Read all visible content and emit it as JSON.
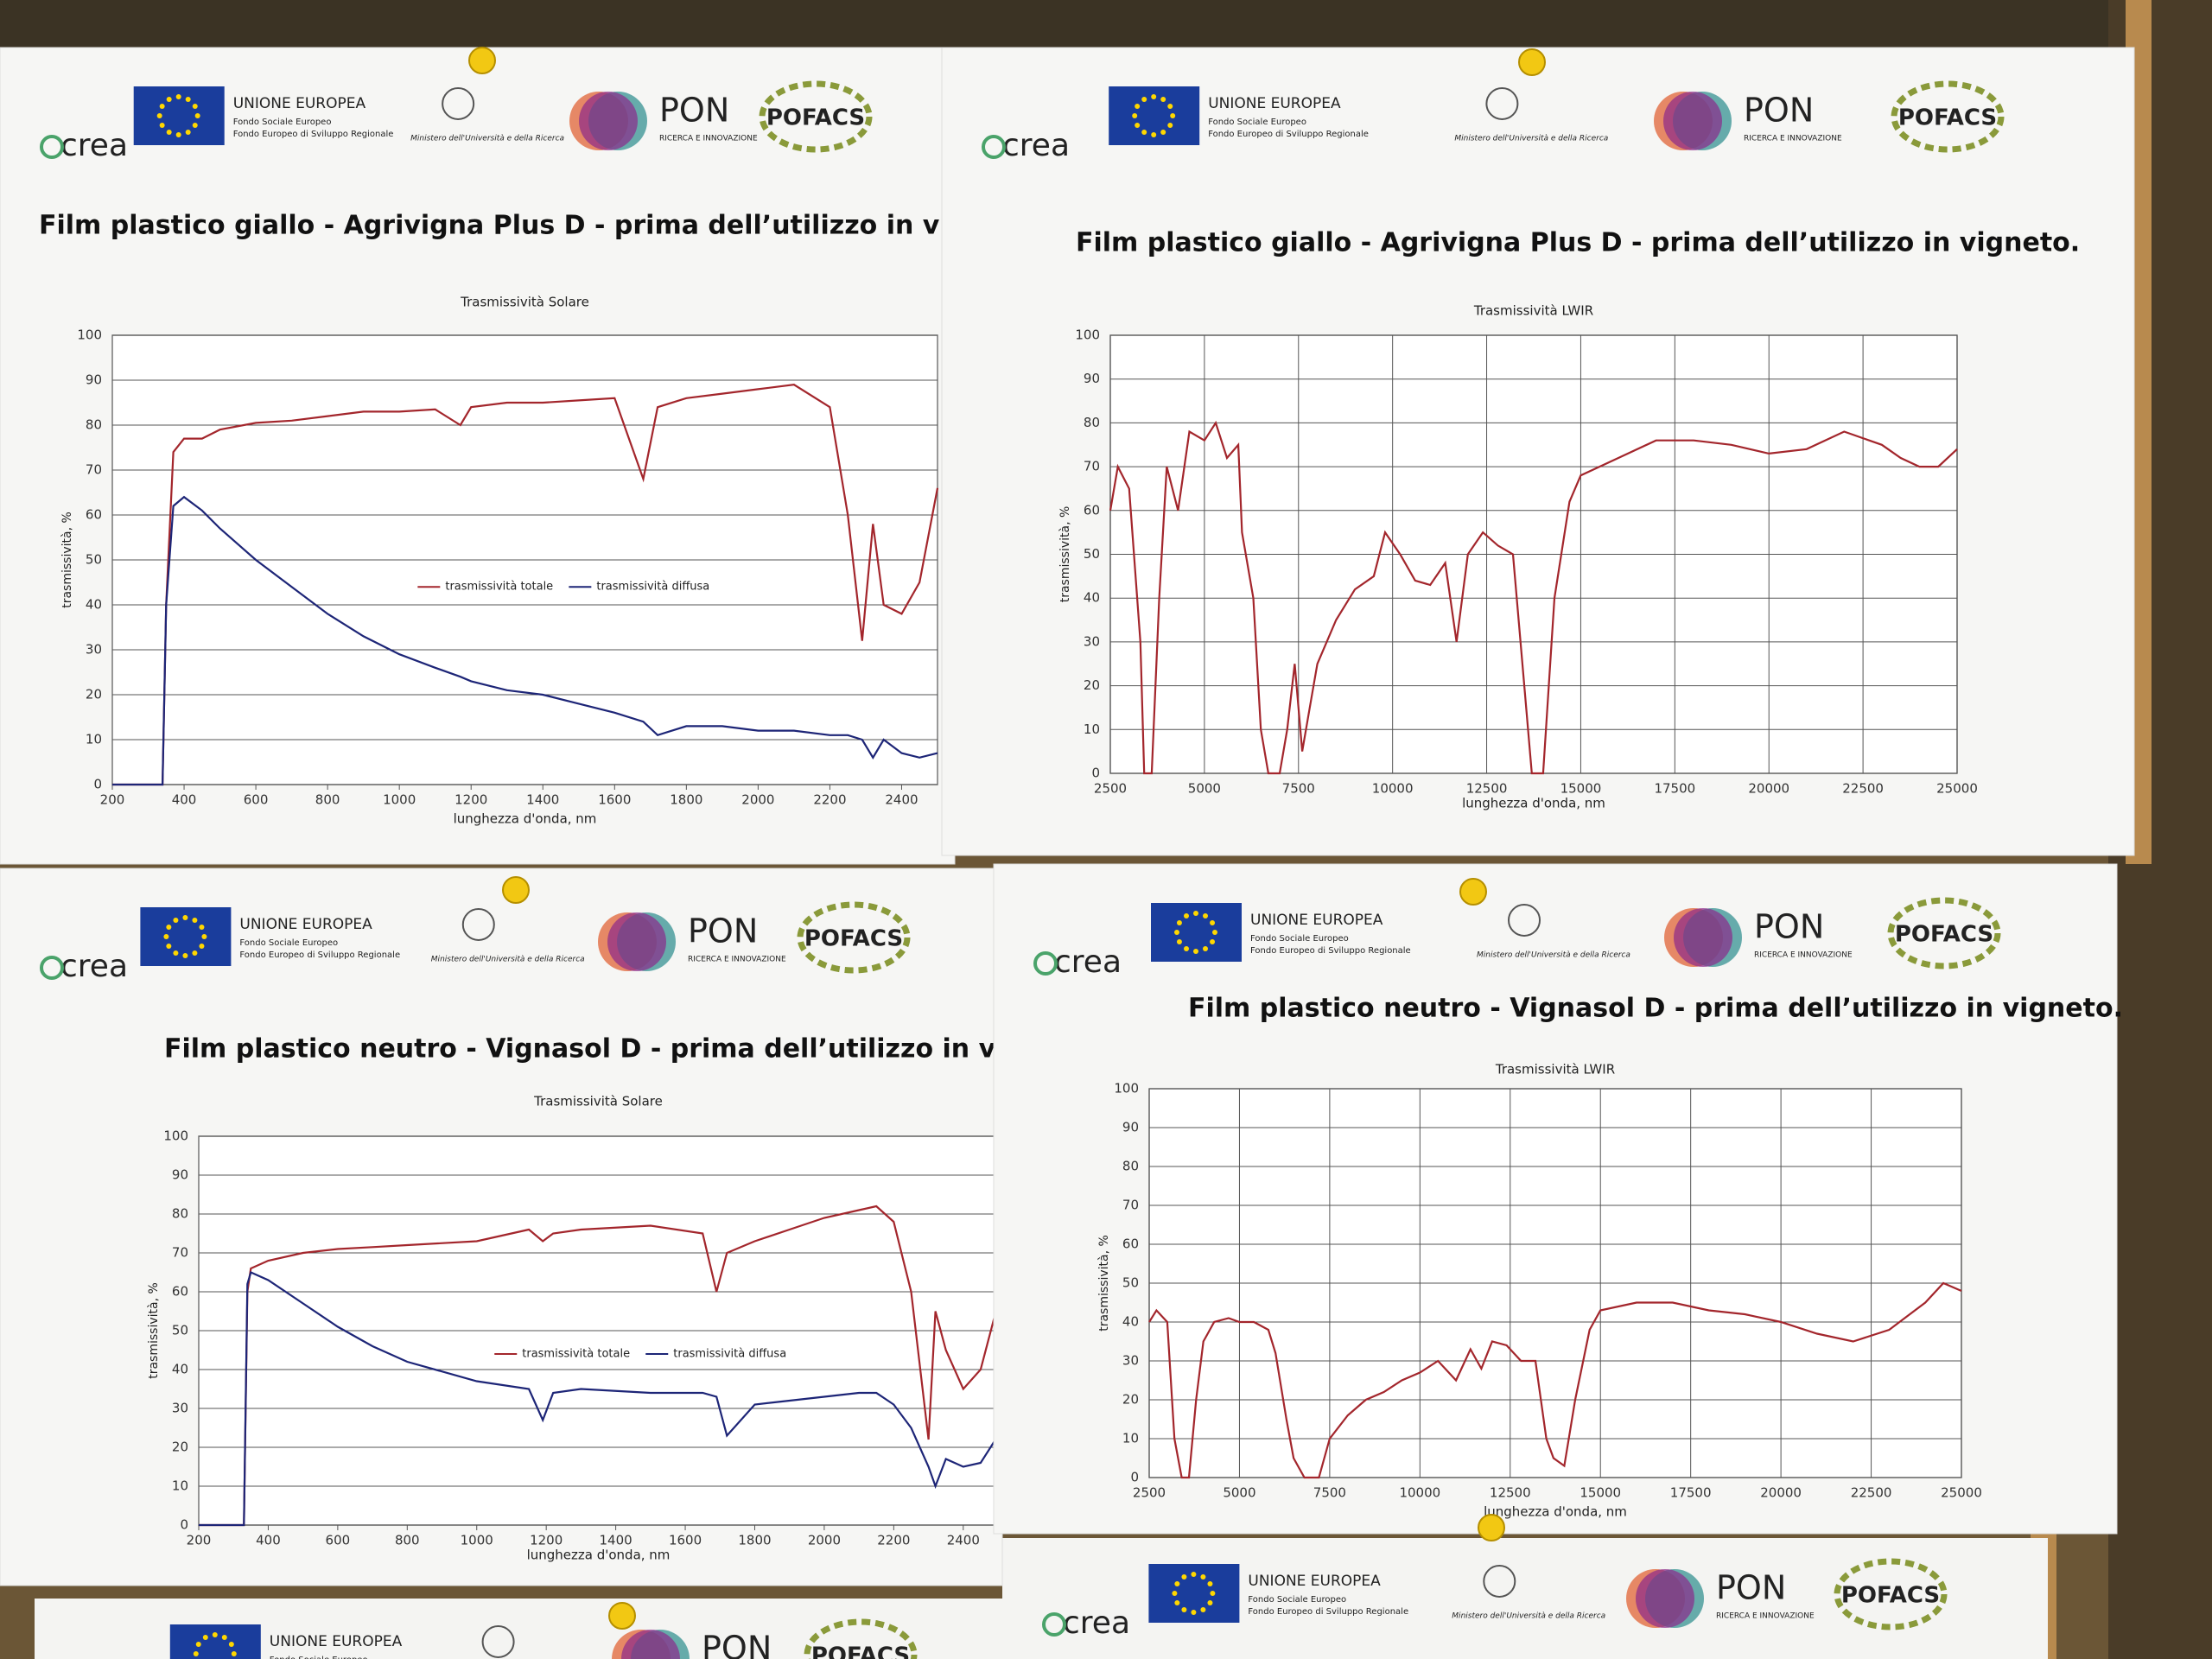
{
  "header": {
    "eu": "UNIONE EUROPEA",
    "fund1": "Fondo Sociale Europeo",
    "fund2": "Fondo Europeo di Sviluppo Regionale",
    "ministry": "Ministero dell'Università e della Ricerca",
    "crea": "crea",
    "pon": "PON",
    "pon_sub": "RICERCA E INNOVAZIONE",
    "pofacs": "POFACS"
  },
  "chart_data": [
    {
      "type": "line",
      "title": "Film plastico giallo - Agrivigna Plus D - prima dell’utilizzo in vigneto",
      "subtitle": "Trasmissività Solare",
      "x_label": "lunghezza  d'onda, nm",
      "y_label": "trasmissività, %",
      "grid": "y",
      "legend": "center",
      "x": [
        200,
        340,
        350,
        370,
        400,
        450,
        500,
        600,
        700,
        800,
        900,
        1000,
        1100,
        1170,
        1200,
        1300,
        1400,
        1500,
        1600,
        1680,
        1720,
        1800,
        1900,
        2000,
        2100,
        2200,
        2250,
        2290,
        2320,
        2350,
        2400,
        2450,
        2500
      ],
      "series": [
        {
          "name": "trasmissività totale",
          "color": "#a3262c",
          "values": [
            0,
            0,
            40,
            74,
            77,
            77,
            79,
            80.5,
            81,
            82,
            83,
            83,
            83.5,
            80,
            84,
            85,
            85,
            85.5,
            86,
            68,
            84,
            86,
            87,
            88,
            89,
            84,
            60,
            32,
            58,
            40,
            38,
            45,
            66
          ]
        },
        {
          "name": "trasmissività diffusa",
          "color": "#1d2577",
          "values": [
            0,
            0,
            40,
            62,
            64,
            61,
            57,
            50,
            44,
            38,
            33,
            29,
            26,
            24,
            23,
            21,
            20,
            18,
            16,
            14,
            11,
            13,
            13,
            12,
            12,
            11,
            11,
            10,
            6,
            10,
            7,
            6,
            7
          ]
        }
      ],
      "xlim": [
        200,
        2500
      ],
      "xticks": [
        200,
        400,
        600,
        800,
        1000,
        1200,
        1400,
        1600,
        1800,
        2000,
        2200,
        2400
      ],
      "ylim": [
        0,
        100
      ],
      "yticks": [
        0,
        10,
        20,
        30,
        40,
        50,
        60,
        70,
        80,
        90,
        100
      ]
    },
    {
      "type": "line",
      "title": "Film plastico giallo - Agrivigna Plus D - prima dell’utilizzo in vigneto.",
      "subtitle": "Trasmissività LWIR",
      "x_label": "lunghezza  d'onda, nm",
      "y_label": "trasmissività, %",
      "grid": "both",
      "x": [
        2500,
        2700,
        3000,
        3300,
        3400,
        3600,
        3800,
        4000,
        4300,
        4600,
        5000,
        5300,
        5600,
        5900,
        6000,
        6300,
        6500,
        6700,
        7000,
        7200,
        7400,
        7600,
        7800,
        8000,
        8500,
        9000,
        9500,
        9800,
        10200,
        10600,
        11000,
        11400,
        11700,
        12000,
        12400,
        12800,
        13200,
        13500,
        13700,
        14000,
        14300,
        14700,
        15000,
        16000,
        17000,
        18000,
        19000,
        20000,
        21000,
        22000,
        23000,
        23500,
        24000,
        24500,
        25000
      ],
      "series": [
        {
          "color": "#a3262c",
          "values": [
            60,
            70,
            65,
            30,
            0,
            0,
            40,
            70,
            60,
            78,
            76,
            80,
            72,
            75,
            55,
            40,
            10,
            0,
            0,
            10,
            25,
            5,
            15,
            25,
            35,
            42,
            45,
            55,
            50,
            44,
            43,
            48,
            30,
            50,
            55,
            52,
            50,
            20,
            0,
            0,
            40,
            62,
            68,
            72,
            76,
            76,
            75,
            73,
            74,
            78,
            75,
            72,
            70,
            70,
            74
          ]
        }
      ],
      "xlim": [
        2500,
        25000
      ],
      "xticks": [
        2500,
        5000,
        7500,
        10000,
        12500,
        15000,
        17500,
        20000,
        22500,
        25000
      ],
      "ylim": [
        0,
        100
      ],
      "yticks": [
        0,
        10,
        20,
        30,
        40,
        50,
        60,
        70,
        80,
        90,
        100
      ]
    },
    {
      "type": "line",
      "title": "Film plastico neutro - Vignasol D - prima dell’utilizzo in vigneto.",
      "subtitle": "Trasmissività Solare",
      "x_label": "lunghezza  d'onda, nm",
      "y_label": "trasmissività, %",
      "grid": "y",
      "legend": "center",
      "x": [
        200,
        330,
        340,
        350,
        400,
        500,
        600,
        700,
        800,
        1000,
        1150,
        1190,
        1220,
        1300,
        1500,
        1650,
        1690,
        1720,
        1800,
        1900,
        2000,
        2100,
        2150,
        2200,
        2250,
        2300,
        2320,
        2350,
        2400,
        2450,
        2500
      ],
      "series": [
        {
          "name": "trasmissività totale",
          "color": "#a3262c",
          "values": [
            0,
            0,
            60,
            66,
            68,
            70,
            71,
            71.5,
            72,
            73,
            76,
            73,
            75,
            76,
            77,
            75,
            60,
            70,
            73,
            76,
            79,
            81,
            82,
            78,
            60,
            22,
            55,
            45,
            35,
            40,
            57
          ]
        },
        {
          "name": "trasmissività diffusa",
          "color": "#1d2577",
          "values": [
            0,
            0,
            62,
            65,
            63,
            57,
            51,
            46,
            42,
            37,
            35,
            27,
            34,
            35,
            34,
            34,
            33,
            23,
            31,
            32,
            33,
            34,
            34,
            31,
            25,
            15,
            10,
            17,
            15,
            16,
            23
          ]
        }
      ],
      "xlim": [
        200,
        2500
      ],
      "xticks": [
        200,
        400,
        600,
        800,
        1000,
        1200,
        1400,
        1600,
        1800,
        2000,
        2200,
        2400
      ],
      "ylim": [
        0,
        100
      ],
      "yticks": [
        0,
        10,
        20,
        30,
        40,
        50,
        60,
        70,
        80,
        90,
        100
      ]
    },
    {
      "type": "line",
      "title": "Film plastico neutro - Vignasol D - prima dell’utilizzo in vigneto.",
      "subtitle": "Trasmissività LWIR",
      "x_label": "lunghezza  d'onda, nm",
      "y_label": "trasmissività, %",
      "grid": "both",
      "x": [
        2500,
        2700,
        3000,
        3200,
        3400,
        3600,
        3800,
        4000,
        4300,
        4700,
        5000,
        5400,
        5800,
        6000,
        6300,
        6500,
        6800,
        7200,
        7500,
        8000,
        8500,
        9000,
        9500,
        10000,
        10500,
        11000,
        11400,
        11700,
        12000,
        12400,
        12800,
        13200,
        13500,
        13700,
        14000,
        14300,
        14700,
        15000,
        16000,
        17000,
        18000,
        19000,
        20000,
        21000,
        22000,
        23000,
        24000,
        24500,
        25000
      ],
      "series": [
        {
          "color": "#a3262c",
          "values": [
            40,
            43,
            40,
            10,
            0,
            0,
            20,
            35,
            40,
            41,
            40,
            40,
            38,
            32,
            15,
            5,
            0,
            0,
            10,
            16,
            20,
            22,
            25,
            27,
            30,
            25,
            33,
            28,
            35,
            34,
            30,
            30,
            10,
            5,
            3,
            20,
            38,
            43,
            45,
            45,
            43,
            42,
            40,
            37,
            35,
            38,
            45,
            50,
            48
          ]
        }
      ],
      "xlim": [
        2500,
        25000
      ],
      "xticks": [
        2500,
        5000,
        7500,
        10000,
        12500,
        15000,
        17500,
        20000,
        22500,
        25000
      ],
      "ylim": [
        0,
        100
      ],
      "yticks": [
        0,
        10,
        20,
        30,
        40,
        50,
        60,
        70,
        80,
        90,
        100
      ]
    }
  ]
}
